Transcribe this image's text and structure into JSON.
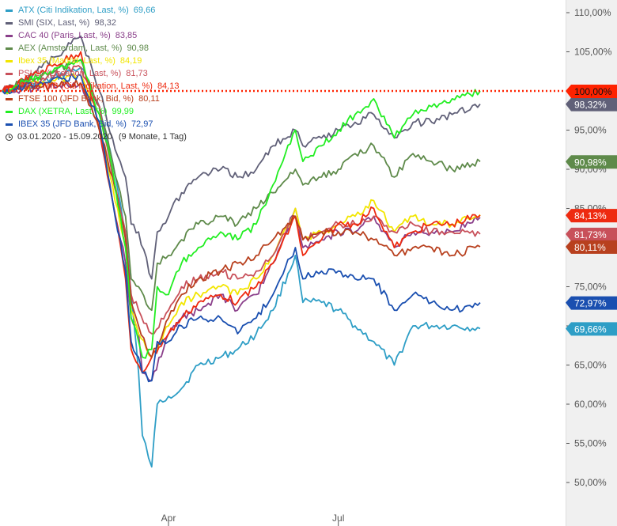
{
  "legend": {
    "items": [
      {
        "label": "ATX (Citi Indikation, Last, %)",
        "value": "69,66",
        "color": "#2e9ec6"
      },
      {
        "label": "SMI (SIX, Last, %)",
        "value": "98,32",
        "color": "#606078"
      },
      {
        "label": "CAC 40 (Paris, Last, %)",
        "value": "83,85",
        "color": "#8a3f8a"
      },
      {
        "label": "AEX (Amsterdam, Last, %)",
        "value": "90,98",
        "color": "#5e8a4a"
      },
      {
        "label": "Ibex 35 (Madrid, Last, %)",
        "value": "84,19",
        "color": "#f2e600"
      },
      {
        "label": "PSI 20 (Lissabon, Last, %)",
        "value": "81,73",
        "color": "#c8505a"
      },
      {
        "label": "FTSE MIB (Citi Indikation, Last, %)",
        "value": "84,13",
        "color": "#ee2a10"
      },
      {
        "label": "FTSE 100 (JFD Bank, Bid, %)",
        "value": "80,11",
        "color": "#b8401e"
      },
      {
        "label": "DAX (XETRA, Last, %)",
        "value": "99,99",
        "color": "#22ee22"
      },
      {
        "label": "IBEX 35 (JFD Bank, Bid, %)",
        "value": "72,97",
        "color": "#1a4fb0"
      }
    ],
    "period": "03.01.2020 - 15.09.2020",
    "period_extra": "(9 Monate, 1 Tag)"
  },
  "chart_data": {
    "type": "line",
    "y_unit": "%",
    "ylim": [
      46.5,
      112.5
    ],
    "y_ticks": [
      {
        "value": 110,
        "label": "110,00%"
      },
      {
        "value": 105,
        "label": "105,00%"
      },
      {
        "value": 95,
        "label": "95,00%"
      },
      {
        "value": 90,
        "label": "90,00%"
      },
      {
        "value": 85,
        "label": "85,00%"
      },
      {
        "value": 75,
        "label": "75,00%"
      },
      {
        "value": 70,
        "label": "70,00%"
      },
      {
        "value": 65,
        "label": "65,00%"
      },
      {
        "value": 60,
        "label": "60,00%"
      },
      {
        "value": 55,
        "label": "55,00%"
      },
      {
        "value": 50,
        "label": "50,00%"
      }
    ],
    "x_ticks": [
      {
        "date": "2020-04-01",
        "label": "Apr"
      },
      {
        "date": "2020-07-01",
        "label": "Jul"
      }
    ],
    "x_start": "2020-01-03",
    "x_end": "2020-09-15",
    "baseline": {
      "value": 100,
      "label": "100,00%",
      "color": "#ff2200"
    },
    "series": [
      {
        "name": "ATX (Citi Indikation, Last, %)",
        "color": "#2e9ec6",
        "end_label": "69,66%",
        "x": [
          "2020-01-03",
          "2020-01-24",
          "2020-02-14",
          "2020-02-24",
          "2020-03-02",
          "2020-03-09",
          "2020-03-12",
          "2020-03-16",
          "2020-03-18",
          "2020-03-23",
          "2020-03-26",
          "2020-04-01",
          "2020-04-08",
          "2020-04-17",
          "2020-04-29",
          "2020-05-08",
          "2020-05-18",
          "2020-05-27",
          "2020-06-08",
          "2020-06-12",
          "2020-06-22",
          "2020-07-01",
          "2020-07-10",
          "2020-07-20",
          "2020-07-31",
          "2020-08-10",
          "2020-08-20",
          "2020-08-31",
          "2020-09-15"
        ],
        "y": [
          100,
          101,
          103,
          98,
          91,
          82,
          74,
          64,
          56,
          52,
          60,
          61,
          62,
          65,
          66,
          67,
          69,
          72,
          79,
          73,
          73,
          72,
          70,
          68,
          65,
          70,
          70,
          70,
          69.66
        ]
      },
      {
        "name": "SMI (SIX, Last, %)",
        "color": "#606078",
        "end_label": "98,32%",
        "x": [
          "2020-01-03",
          "2020-01-24",
          "2020-02-14",
          "2020-02-24",
          "2020-03-02",
          "2020-03-09",
          "2020-03-12",
          "2020-03-16",
          "2020-03-23",
          "2020-03-26",
          "2020-04-01",
          "2020-04-08",
          "2020-04-17",
          "2020-04-29",
          "2020-05-08",
          "2020-05-18",
          "2020-05-27",
          "2020-06-08",
          "2020-06-12",
          "2020-06-22",
          "2020-07-01",
          "2020-07-10",
          "2020-07-20",
          "2020-07-31",
          "2020-08-10",
          "2020-08-20",
          "2020-08-31",
          "2020-09-15"
        ],
        "y": [
          100,
          103,
          107,
          100,
          94,
          89,
          83,
          82,
          76,
          82,
          84,
          87,
          89,
          90,
          89,
          90,
          93,
          95,
          93,
          94,
          95,
          96,
          97,
          94,
          96,
          96,
          97,
          98.32
        ]
      },
      {
        "name": "CAC 40 (Paris, Last, %)",
        "color": "#8a3f8a",
        "end_label": "",
        "x": [
          "2020-01-03",
          "2020-02-14",
          "2020-02-24",
          "2020-03-02",
          "2020-03-09",
          "2020-03-12",
          "2020-03-16",
          "2020-03-18",
          "2020-03-23",
          "2020-04-01",
          "2020-04-08",
          "2020-04-17",
          "2020-04-29",
          "2020-05-08",
          "2020-05-18",
          "2020-05-27",
          "2020-06-08",
          "2020-06-12",
          "2020-06-22",
          "2020-07-01",
          "2020-07-10",
          "2020-07-20",
          "2020-07-31",
          "2020-08-10",
          "2020-08-20",
          "2020-08-31",
          "2020-09-15"
        ],
        "y": [
          100,
          101,
          95,
          86,
          78,
          71,
          69,
          64,
          63,
          69,
          71,
          72,
          74,
          72,
          74,
          78,
          85,
          80,
          81,
          82,
          82,
          84,
          80,
          82,
          82,
          82,
          83.85
        ]
      },
      {
        "name": "AEX (Amsterdam, Last, %)",
        "color": "#5e8a4a",
        "end_label": "90,98%",
        "x": [
          "2020-01-03",
          "2020-02-14",
          "2020-02-24",
          "2020-03-02",
          "2020-03-09",
          "2020-03-12",
          "2020-03-16",
          "2020-03-23",
          "2020-03-26",
          "2020-04-01",
          "2020-04-08",
          "2020-04-17",
          "2020-04-29",
          "2020-05-08",
          "2020-05-18",
          "2020-05-27",
          "2020-06-08",
          "2020-06-12",
          "2020-06-22",
          "2020-07-01",
          "2020-07-10",
          "2020-07-20",
          "2020-07-31",
          "2020-08-10",
          "2020-08-20",
          "2020-08-31",
          "2020-09-15"
        ],
        "y": [
          100,
          104,
          98,
          91,
          84,
          76,
          75,
          72,
          78,
          79,
          81,
          83,
          84,
          83,
          85,
          87,
          90,
          88,
          89,
          90,
          92,
          93,
          89,
          92,
          91,
          90,
          90.98
        ]
      },
      {
        "name": "Ibex 35 (Madrid, Last, %)",
        "color": "#f2e600",
        "end_label": "",
        "x": [
          "2020-01-03",
          "2020-02-14",
          "2020-02-24",
          "2020-03-02",
          "2020-03-09",
          "2020-03-12",
          "2020-03-16",
          "2020-03-23",
          "2020-04-01",
          "2020-04-08",
          "2020-04-17",
          "2020-04-29",
          "2020-05-08",
          "2020-05-18",
          "2020-05-27",
          "2020-06-08",
          "2020-06-12",
          "2020-06-22",
          "2020-07-01",
          "2020-07-10",
          "2020-07-20",
          "2020-07-31",
          "2020-08-10",
          "2020-08-20",
          "2020-08-31",
          "2020-09-15"
        ],
        "y": [
          100,
          102,
          96,
          88,
          80,
          72,
          69,
          66,
          70,
          73,
          74,
          75,
          74,
          76,
          79,
          85,
          81,
          82,
          83,
          84,
          86,
          82,
          84,
          83,
          83,
          84.19
        ]
      },
      {
        "name": "PSI 20 (Lissabon, Last, %)",
        "color": "#c8505a",
        "end_label": "81,73%",
        "x": [
          "2020-01-03",
          "2020-02-14",
          "2020-02-24",
          "2020-03-02",
          "2020-03-09",
          "2020-03-12",
          "2020-03-16",
          "2020-03-23",
          "2020-04-01",
          "2020-04-08",
          "2020-04-17",
          "2020-04-29",
          "2020-05-08",
          "2020-05-18",
          "2020-05-27",
          "2020-06-08",
          "2020-06-12",
          "2020-06-22",
          "2020-07-01",
          "2020-07-10",
          "2020-07-20",
          "2020-07-31",
          "2020-08-10",
          "2020-08-20",
          "2020-08-31",
          "2020-09-15"
        ],
        "y": [
          100,
          103,
          98,
          89,
          82,
          74,
          72,
          69,
          72,
          75,
          76,
          77,
          76,
          77,
          79,
          84,
          81,
          82,
          83,
          83,
          84,
          82,
          83,
          82,
          82,
          81.73
        ]
      },
      {
        "name": "FTSE MIB (Citi Indikation, Last, %)",
        "color": "#ee2a10",
        "end_label": "84,13%",
        "x": [
          "2020-01-03",
          "2020-02-14",
          "2020-02-24",
          "2020-03-02",
          "2020-03-09",
          "2020-03-12",
          "2020-03-16",
          "2020-03-18",
          "2020-03-23",
          "2020-04-01",
          "2020-04-08",
          "2020-04-17",
          "2020-04-29",
          "2020-05-08",
          "2020-05-18",
          "2020-05-27",
          "2020-06-08",
          "2020-06-12",
          "2020-06-22",
          "2020-07-01",
          "2020-07-10",
          "2020-07-20",
          "2020-07-31",
          "2020-08-10",
          "2020-08-20",
          "2020-08-31",
          "2020-09-15"
        ],
        "y": [
          100,
          105,
          95,
          86,
          76,
          67,
          65,
          64,
          66,
          69,
          71,
          73,
          74,
          73,
          75,
          78,
          84,
          79,
          81,
          83,
          83,
          85,
          80,
          82,
          83,
          83,
          84.13
        ]
      },
      {
        "name": "FTSE 100 (JFD Bank, Bid, %)",
        "color": "#b8401e",
        "end_label": "80,11%",
        "x": [
          "2020-01-03",
          "2020-02-14",
          "2020-02-24",
          "2020-03-02",
          "2020-03-09",
          "2020-03-12",
          "2020-03-16",
          "2020-03-23",
          "2020-04-01",
          "2020-04-08",
          "2020-04-17",
          "2020-04-29",
          "2020-05-08",
          "2020-05-18",
          "2020-05-27",
          "2020-06-08",
          "2020-06-12",
          "2020-06-22",
          "2020-07-01",
          "2020-07-10",
          "2020-07-20",
          "2020-07-31",
          "2020-08-10",
          "2020-08-20",
          "2020-08-31",
          "2020-09-15"
        ],
        "y": [
          100,
          101,
          95,
          89,
          81,
          73,
          70,
          66,
          71,
          74,
          76,
          77,
          78,
          79,
          81,
          84,
          81,
          82,
          82,
          82,
          81,
          79,
          80,
          80,
          79,
          80.11
        ]
      },
      {
        "name": "DAX (XETRA, Last, %)",
        "color": "#22ee22",
        "end_label": "",
        "x": [
          "2020-01-03",
          "2020-02-14",
          "2020-02-24",
          "2020-03-02",
          "2020-03-09",
          "2020-03-12",
          "2020-03-16",
          "2020-03-18",
          "2020-03-23",
          "2020-03-26",
          "2020-04-01",
          "2020-04-08",
          "2020-04-17",
          "2020-04-29",
          "2020-05-08",
          "2020-05-18",
          "2020-05-27",
          "2020-06-08",
          "2020-06-12",
          "2020-06-22",
          "2020-07-01",
          "2020-07-10",
          "2020-07-20",
          "2020-07-31",
          "2020-08-10",
          "2020-08-20",
          "2020-08-31",
          "2020-09-15"
        ],
        "y": [
          100,
          104,
          97,
          90,
          80,
          71,
          68,
          66,
          67,
          75,
          74,
          78,
          80,
          82,
          81,
          83,
          88,
          95,
          91,
          93,
          95,
          97,
          99,
          94,
          97,
          98,
          99,
          99.99
        ]
      },
      {
        "name": "IBEX 35 (JFD Bank, Bid, %)",
        "color": "#1a4fb0",
        "end_label": "72,97%",
        "x": [
          "2020-01-03",
          "2020-02-14",
          "2020-02-24",
          "2020-03-02",
          "2020-03-09",
          "2020-03-12",
          "2020-03-16",
          "2020-03-18",
          "2020-03-23",
          "2020-03-26",
          "2020-04-01",
          "2020-04-08",
          "2020-04-17",
          "2020-04-29",
          "2020-05-08",
          "2020-05-18",
          "2020-05-27",
          "2020-06-08",
          "2020-06-12",
          "2020-06-22",
          "2020-07-01",
          "2020-07-10",
          "2020-07-20",
          "2020-07-31",
          "2020-08-10",
          "2020-08-20",
          "2020-08-31",
          "2020-09-15"
        ],
        "y": [
          100,
          102,
          96,
          86,
          77,
          68,
          66,
          64,
          63,
          68,
          68,
          70,
          71,
          71,
          69,
          71,
          74,
          80,
          76,
          77,
          77,
          76,
          76,
          72,
          74,
          73,
          72,
          72.97
        ]
      }
    ]
  }
}
